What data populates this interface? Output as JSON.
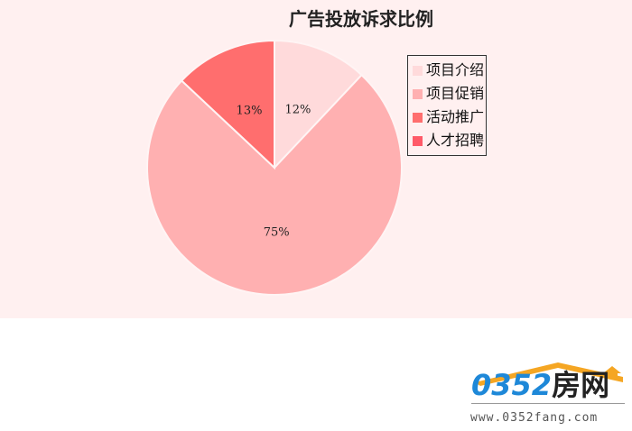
{
  "chart_data": {
    "type": "pie",
    "title": "广告投放诉求比例",
    "categories": [
      "项目介绍",
      "项目促销",
      "活动推广",
      "人才招聘"
    ],
    "values": [
      12,
      75,
      13,
      0
    ],
    "labels": [
      "12%",
      "75%",
      "13%",
      ""
    ],
    "colors": [
      "#ffdadb",
      "#ffb0b1",
      "#ff6e6e",
      "#ff5a68"
    ],
    "legend_position": "top-right",
    "start": "top",
    "direction": "clockwise"
  },
  "watermark": {
    "brand": "0352",
    "brand_cn": "房网",
    "url": "www.0352fang.com"
  }
}
